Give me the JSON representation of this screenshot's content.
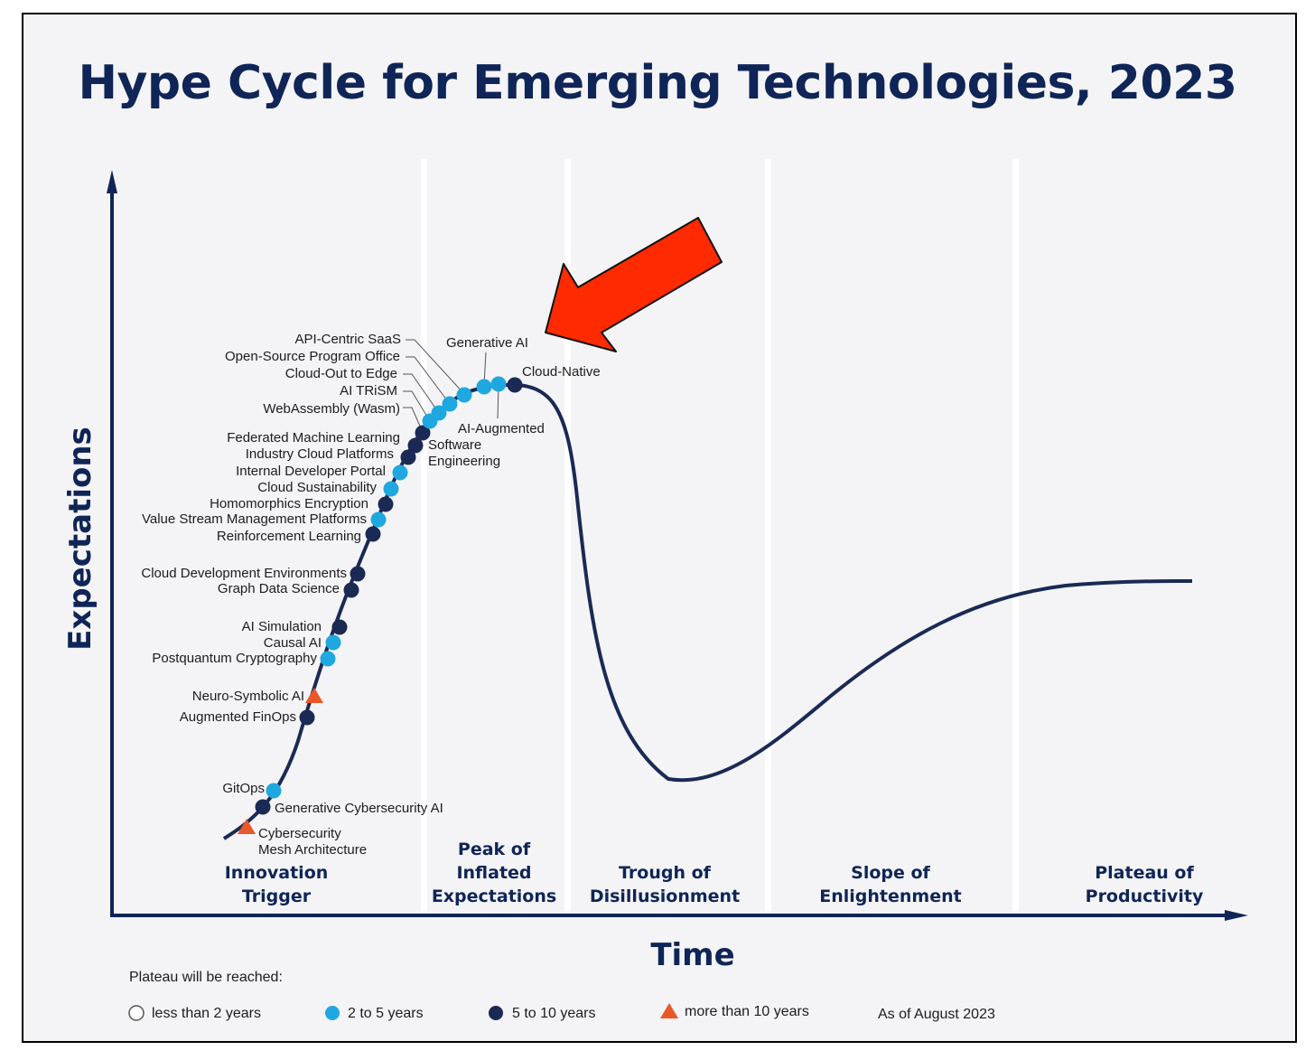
{
  "title": "Hype Cycle for Emerging Technologies, 2023",
  "axes": {
    "y_label": "Expectations",
    "x_label": "Time"
  },
  "phases": [
    {
      "lines": [
        "Innovation",
        "Trigger"
      ]
    },
    {
      "lines": [
        "Peak of",
        "Inflated",
        "Expectations"
      ]
    },
    {
      "lines": [
        "Trough of",
        "Disillusionment"
      ]
    },
    {
      "lines": [
        "Slope of",
        "Enlightenment"
      ]
    },
    {
      "lines": [
        "Plateau of",
        "Productivity"
      ]
    }
  ],
  "technologies": [
    {
      "name": "Cybersecurity Mesh Architecture",
      "lines": [
        "Cybersecurity",
        "Mesh Architecture"
      ],
      "plateau": "more than 10 years"
    },
    {
      "name": "Generative Cybersecurity AI",
      "lines": [
        "Generative Cybersecurity AI"
      ],
      "plateau": "5 to 10 years"
    },
    {
      "name": "GitOps",
      "lines": [
        "GitOps"
      ],
      "plateau": "2 to 5 years"
    },
    {
      "name": "Augmented FinOps",
      "lines": [
        "Augmented FinOps"
      ],
      "plateau": "5 to 10 years"
    },
    {
      "name": "Neuro-Symbolic AI",
      "lines": [
        "Neuro-Symbolic AI"
      ],
      "plateau": "more than 10 years"
    },
    {
      "name": "Postquantum Cryptography",
      "lines": [
        "Postquantum Cryptography"
      ],
      "plateau": "2 to 5 years"
    },
    {
      "name": "Causal AI",
      "lines": [
        "Causal AI"
      ],
      "plateau": "2 to 5 years"
    },
    {
      "name": "AI Simulation",
      "lines": [
        "AI Simulation"
      ],
      "plateau": "5 to 10 years"
    },
    {
      "name": "Graph Data Science",
      "lines": [
        "Graph Data Science"
      ],
      "plateau": "5 to 10 years"
    },
    {
      "name": "Cloud Development Environments",
      "lines": [
        "Cloud Development Environments"
      ],
      "plateau": "5 to 10 years"
    },
    {
      "name": "Reinforcement Learning",
      "lines": [
        "Reinforcement Learning"
      ],
      "plateau": "5 to 10 years"
    },
    {
      "name": "Value Stream Management Platforms",
      "lines": [
        "Value Stream Management Platforms"
      ],
      "plateau": "2 to 5 years"
    },
    {
      "name": "Homomorphics Encryption",
      "lines": [
        "Homomorphics Encryption"
      ],
      "plateau": "5 to 10 years"
    },
    {
      "name": "Cloud Sustainability",
      "lines": [
        "Cloud Sustainability"
      ],
      "plateau": "2 to 5 years"
    },
    {
      "name": "Internal Developer Portal",
      "lines": [
        "Internal Developer Portal"
      ],
      "plateau": "2 to 5 years"
    },
    {
      "name": "Industry Cloud Platforms",
      "lines": [
        "Industry Cloud Platforms"
      ],
      "plateau": "5 to 10 years"
    },
    {
      "name": "Federated Machine Learning",
      "lines": [
        "Federated Machine Learning"
      ],
      "plateau": "5 to 10 years"
    },
    {
      "name": "Software Engineering",
      "lines": [
        "Software",
        "Engineering"
      ],
      "plateau": "5 to 10 years"
    },
    {
      "name": "WebAssembly (Wasm)",
      "lines": [
        "WebAssembly (Wasm)"
      ],
      "plateau": "2 to 5 years"
    },
    {
      "name": "AI TRiSM",
      "lines": [
        "AI TRiSM"
      ],
      "plateau": "2 to 5 years"
    },
    {
      "name": "Cloud-Out to Edge",
      "lines": [
        "Cloud-Out to Edge"
      ],
      "plateau": "2 to 5 years"
    },
    {
      "name": "Open-Source Program Office",
      "lines": [
        "Open-Source Program Office"
      ],
      "plateau": "2 to 5 years"
    },
    {
      "name": "API-Centric SaaS",
      "lines": [
        "API-Centric SaaS"
      ],
      "plateau": "2 to 5 years"
    },
    {
      "name": "Generative AI",
      "lines": [
        "Generative AI"
      ],
      "plateau": "2 to 5 years"
    },
    {
      "name": "AI-Augmented",
      "lines": [
        "AI-Augmented"
      ],
      "plateau": "2 to 5 years"
    },
    {
      "name": "Cloud-Native",
      "lines": [
        "Cloud-Native"
      ],
      "plateau": "5 to 10 years"
    }
  ],
  "legend": {
    "title": "Plateau will be reached:",
    "items": [
      {
        "label": "less than 2 years",
        "marker": "circle-open"
      },
      {
        "label": "2 to 5 years",
        "marker": "circle-light-blue"
      },
      {
        "label": "5 to 10 years",
        "marker": "circle-dark-navy"
      },
      {
        "label": "more than 10 years",
        "marker": "triangle-orange"
      }
    ],
    "note": "As of August 2023"
  },
  "colors": {
    "navy": "#0f2557",
    "light_blue": "#1fa8e0",
    "dark_navy": "#1a2a55",
    "orange": "#e8582b",
    "arrow": "#ff2a00"
  },
  "annotation": {
    "icon": "red-arrow-icon",
    "points_to": "Generative AI"
  }
}
